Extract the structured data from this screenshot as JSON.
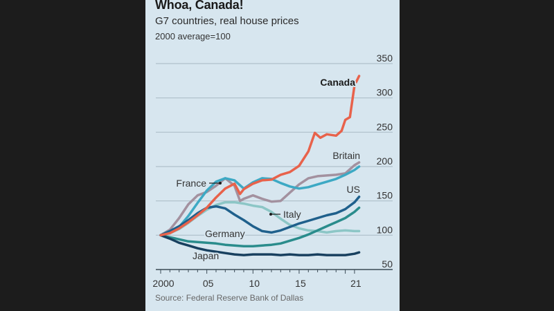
{
  "header": {
    "title": "Whoa, Canada!",
    "subtitle": "G7 countries, real house prices",
    "unit": "2000 average=100"
  },
  "footer": {
    "source": "Source: Federal Reserve Bank of Dallas"
  },
  "chart_data": {
    "type": "line",
    "title": "Whoa, Canada!",
    "subtitle": "G7 countries, real house prices",
    "ylabel": "2000 average=100",
    "xlabel": "",
    "xlim": [
      2000,
      2021.6
    ],
    "ylim": [
      50,
      350
    ],
    "yticks": [
      50,
      100,
      150,
      200,
      250,
      300,
      350
    ],
    "ytick_labels": [
      "50",
      "100",
      "150",
      "200",
      "250",
      "300",
      "350"
    ],
    "xticks": [
      2000,
      2005,
      2010,
      2015,
      2021
    ],
    "xtick_labels": [
      "2000",
      "05",
      "10",
      "15",
      "21"
    ],
    "grid": "horizontal",
    "source": "Source: Federal Reserve Bank of Dallas",
    "series": [
      {
        "name": "Italy",
        "label": "Italy",
        "color": "#8cc6c6",
        "x": [
          2000,
          2001,
          2002,
          2003,
          2004,
          2005,
          2006,
          2007,
          2008,
          2009,
          2010,
          2011,
          2012,
          2013,
          2014,
          2015,
          2016,
          2017,
          2018,
          2019,
          2020,
          2021,
          2021.5
        ],
        "values": [
          100,
          103,
          109,
          118,
          128,
          137,
          144,
          148,
          148,
          146,
          143,
          141,
          134,
          124,
          115,
          110,
          107,
          106,
          104,
          106,
          107,
          106,
          106
        ]
      },
      {
        "name": "Britain",
        "label": "Britain",
        "color": "#a3919f",
        "x": [
          2000,
          2001,
          2002,
          2003,
          2004,
          2005,
          2006,
          2007,
          2008,
          2008.6,
          2009,
          2010,
          2011,
          2012,
          2013,
          2014,
          2015,
          2016,
          2017,
          2018,
          2019,
          2020,
          2021,
          2021.5
        ],
        "values": [
          100,
          108,
          125,
          145,
          158,
          163,
          172,
          183,
          172,
          150,
          153,
          158,
          153,
          149,
          150,
          162,
          174,
          183,
          186,
          187,
          188,
          190,
          202,
          206
        ]
      },
      {
        "name": "France",
        "label": "France",
        "color": "#3da9c4",
        "x": [
          2000,
          2001,
          2002,
          2003,
          2004,
          2005,
          2006,
          2007,
          2008,
          2009,
          2010,
          2011,
          2012,
          2013,
          2014,
          2015,
          2016,
          2017,
          2018,
          2019,
          2020,
          2021,
          2021.5
        ],
        "values": [
          100,
          104,
          112,
          128,
          147,
          165,
          178,
          183,
          180,
          168,
          177,
          183,
          182,
          176,
          171,
          168,
          170,
          174,
          178,
          182,
          188,
          195,
          200
        ]
      },
      {
        "name": "Germany",
        "label": "Germany",
        "color": "#2a8c8c",
        "x": [
          2000,
          2001,
          2002,
          2003,
          2004,
          2005,
          2006,
          2007,
          2008,
          2009,
          2010,
          2011,
          2012,
          2013,
          2014,
          2015,
          2016,
          2017,
          2018,
          2019,
          2020,
          2021,
          2021.5
        ],
        "values": [
          100,
          97,
          94,
          91,
          90,
          89,
          88,
          86,
          85,
          84,
          84,
          85,
          86,
          88,
          92,
          96,
          101,
          107,
          113,
          119,
          125,
          134,
          140
        ]
      },
      {
        "name": "Japan",
        "label": "Japan",
        "color": "#18405f",
        "x": [
          2000,
          2001,
          2002,
          2003,
          2004,
          2005,
          2006,
          2007,
          2008,
          2009,
          2010,
          2011,
          2012,
          2013,
          2014,
          2015,
          2016,
          2017,
          2018,
          2019,
          2020,
          2021,
          2021.5
        ],
        "values": [
          100,
          95,
          89,
          85,
          81,
          78,
          76,
          74,
          72,
          71,
          72,
          72,
          72,
          71,
          72,
          71,
          71,
          72,
          71,
          71,
          71,
          73,
          75
        ]
      },
      {
        "name": "US",
        "label": "US",
        "color": "#1f608c",
        "x": [
          2000,
          2001,
          2002,
          2003,
          2004,
          2005,
          2006,
          2007,
          2008,
          2009,
          2010,
          2011,
          2012,
          2013,
          2014,
          2015,
          2016,
          2017,
          2018,
          2019,
          2020,
          2021,
          2021.5
        ],
        "values": [
          100,
          106,
          113,
          122,
          132,
          140,
          142,
          139,
          130,
          122,
          113,
          106,
          104,
          107,
          112,
          117,
          121,
          125,
          129,
          132,
          138,
          148,
          156
        ]
      },
      {
        "name": "Canada",
        "label": "Canada",
        "color": "#e8624b",
        "x": [
          2000,
          2001,
          2002,
          2003,
          2004,
          2005,
          2006,
          2007,
          2008,
          2008.6,
          2009,
          2010,
          2011,
          2012,
          2013,
          2014,
          2015,
          2016,
          2016.7,
          2017.3,
          2018,
          2019,
          2019.6,
          2020,
          2020.5,
          2021,
          2021.5
        ],
        "values": [
          100,
          103,
          110,
          119,
          129,
          140,
          155,
          168,
          175,
          160,
          167,
          175,
          180,
          181,
          188,
          192,
          201,
          222,
          249,
          242,
          247,
          245,
          252,
          268,
          272,
          318,
          332
        ]
      }
    ],
    "labels": [
      {
        "series": "Canada",
        "text": "Canada",
        "bold": true
      },
      {
        "series": "Britain",
        "text": "Britain",
        "bold": false
      },
      {
        "series": "France",
        "text": "France",
        "bold": false,
        "pointer": true
      },
      {
        "series": "US",
        "text": "US",
        "bold": false
      },
      {
        "series": "Italy",
        "text": "Italy",
        "bold": false,
        "pointer": true
      },
      {
        "series": "Germany",
        "text": "Germany",
        "bold": false
      },
      {
        "series": "Japan",
        "text": "Japan",
        "bold": false
      }
    ]
  }
}
